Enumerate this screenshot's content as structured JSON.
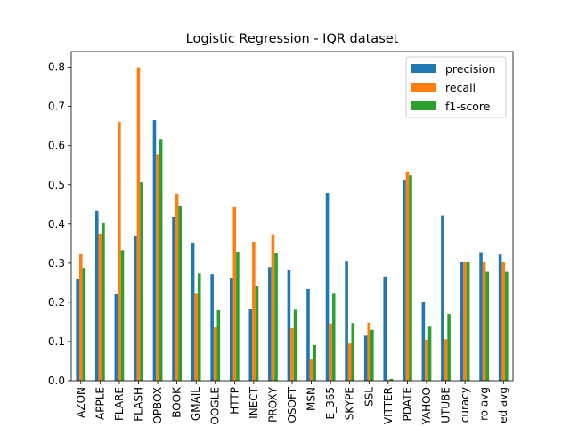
{
  "chart_data": {
    "type": "bar",
    "title": "Logistic Regression - IQR dataset",
    "xlabel": "",
    "ylabel": "",
    "ylim": [
      0,
      0.84
    ],
    "yticks": [
      0.0,
      0.1,
      0.2,
      0.3,
      0.4,
      0.5,
      0.6,
      0.7,
      0.8
    ],
    "ytick_labels": [
      "0.0",
      "0.1",
      "0.2",
      "0.3",
      "0.4",
      "0.5",
      "0.6",
      "0.7",
      "0.8"
    ],
    "grid": false,
    "legend_position": "top-right",
    "categories": [
      "AZON",
      "APPLE",
      "FLARE",
      "FLASH",
      "OPBOX",
      "BOOK",
      "GMAIL",
      "OOGLE",
      "HTTP",
      "INECT",
      "PROXY",
      "OSOFT",
      "MSN",
      "E_365",
      "SKYPE",
      "SSL",
      "VITTER",
      "PDATE",
      "YAHOO",
      "UTUBE",
      "curacy",
      "ro avg",
      "ed avg"
    ],
    "series": [
      {
        "name": "precision",
        "color": "#1f77b4",
        "values": [
          0.259,
          0.434,
          0.222,
          0.37,
          0.665,
          0.418,
          0.352,
          0.272,
          0.261,
          0.184,
          0.29,
          0.284,
          0.234,
          0.479,
          0.306,
          0.115,
          0.266,
          0.513,
          0.2,
          0.421,
          0.304,
          0.328,
          0.322
        ]
      },
      {
        "name": "recall",
        "color": "#ff7f0e",
        "values": [
          0.325,
          0.375,
          0.661,
          0.8,
          0.578,
          0.477,
          0.224,
          0.136,
          0.443,
          0.354,
          0.373,
          0.134,
          0.056,
          0.146,
          0.095,
          0.148,
          0.003,
          0.534,
          0.105,
          0.106,
          0.304,
          0.304,
          0.304
        ]
      },
      {
        "name": "f1-score",
        "color": "#2ca02c",
        "values": [
          0.288,
          0.402,
          0.333,
          0.506,
          0.617,
          0.445,
          0.274,
          0.181,
          0.329,
          0.242,
          0.327,
          0.183,
          0.091,
          0.224,
          0.147,
          0.13,
          0.005,
          0.524,
          0.138,
          0.17,
          0.304,
          0.278,
          0.278
        ]
      }
    ]
  }
}
